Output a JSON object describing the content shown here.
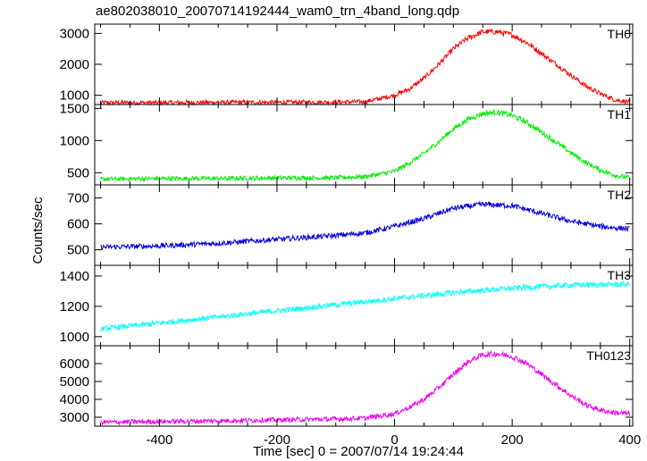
{
  "chart_data": {
    "type": "line",
    "title": "ae802038010_20070714192444_wam0_trn_4band_long.qdp",
    "xlabel": "Time [sec] 0 = 2007/07/14 19:24:44",
    "ylabel": "Counts/sec",
    "xlim": [
      -510,
      405
    ],
    "x_ticks": [
      -400,
      -200,
      0,
      200,
      400
    ],
    "panels": [
      {
        "name": "TH0",
        "color": "#ff0000",
        "ylim": [
          700,
          3300
        ],
        "y_ticks": [
          1000,
          2000,
          3000
        ],
        "x": [
          -500,
          -400,
          -300,
          -200,
          -100,
          -50,
          0,
          25,
          50,
          75,
          100,
          125,
          150,
          175,
          200,
          225,
          250,
          275,
          300,
          325,
          350,
          375,
          400
        ],
        "y": [
          760,
          760,
          770,
          770,
          780,
          790,
          1000,
          1200,
          1550,
          2000,
          2500,
          2850,
          3050,
          3050,
          2950,
          2700,
          2350,
          2000,
          1650,
          1300,
          1050,
          850,
          780
        ]
      },
      {
        "name": "TH1",
        "color": "#00ee00",
        "ylim": [
          310,
          1560
        ],
        "y_ticks": [
          500,
          1000,
          1500
        ],
        "x": [
          -500,
          -400,
          -300,
          -200,
          -100,
          -50,
          0,
          25,
          50,
          75,
          100,
          125,
          150,
          175,
          200,
          225,
          250,
          275,
          300,
          325,
          350,
          375,
          400
        ],
        "y": [
          400,
          410,
          410,
          420,
          420,
          440,
          520,
          650,
          800,
          980,
          1180,
          1330,
          1420,
          1440,
          1390,
          1280,
          1130,
          970,
          810,
          660,
          540,
          460,
          420
        ]
      },
      {
        "name": "TH2",
        "color": "#0000dd",
        "ylim": [
          440,
          750
        ],
        "y_ticks": [
          500,
          600,
          700
        ],
        "x": [
          -500,
          -400,
          -300,
          -200,
          -100,
          -50,
          0,
          50,
          100,
          150,
          200,
          250,
          300,
          350,
          400
        ],
        "y": [
          510,
          515,
          525,
          540,
          555,
          565,
          590,
          620,
          660,
          675,
          670,
          640,
          610,
          590,
          580
        ]
      },
      {
        "name": "TH3",
        "color": "#00ffff",
        "ylim": [
          940,
          1470
        ],
        "y_ticks": [
          1000,
          1200,
          1400
        ],
        "x": [
          -500,
          -400,
          -300,
          -200,
          -100,
          0,
          100,
          200,
          300,
          400
        ],
        "y": [
          1050,
          1090,
          1130,
          1170,
          1210,
          1250,
          1290,
          1320,
          1340,
          1345
        ]
      },
      {
        "name": "TH0123",
        "color": "#ee00ee",
        "ylim": [
          2500,
          7000
        ],
        "y_ticks": [
          3000,
          4000,
          5000,
          6000
        ],
        "x": [
          -500,
          -400,
          -300,
          -200,
          -100,
          -50,
          0,
          25,
          50,
          75,
          100,
          125,
          150,
          175,
          200,
          225,
          250,
          275,
          300,
          325,
          350,
          375,
          400
        ],
        "y": [
          2720,
          2760,
          2800,
          2850,
          2900,
          2950,
          3200,
          3550,
          4000,
          4650,
          5400,
          6100,
          6500,
          6550,
          6400,
          6000,
          5400,
          4800,
          4200,
          3700,
          3400,
          3250,
          3200
        ]
      }
    ]
  }
}
